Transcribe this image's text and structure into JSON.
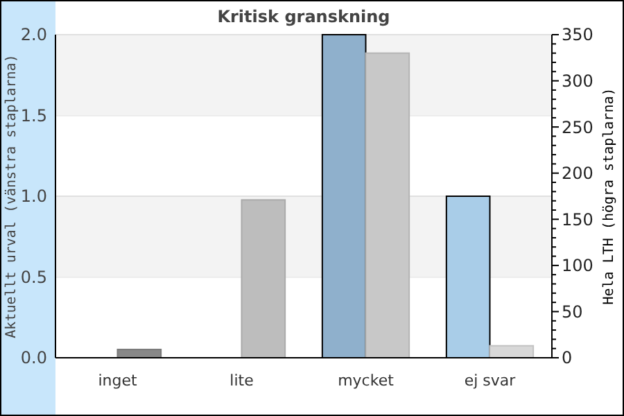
{
  "chart_data": {
    "type": "bar",
    "title": "Kritisk granskning",
    "categories": [
      "inget",
      "lite",
      "mycket",
      "ej svar"
    ],
    "ylabel": "Aktuellt urval (vänstra staplarna)",
    "y2label": "Hela LTH (högra staplarna)",
    "ylim": [
      0,
      2
    ],
    "yticks": [
      {
        "value": 0,
        "label": "0.0"
      },
      {
        "value": 0.5,
        "label": "0.5"
      },
      {
        "value": 1,
        "label": "1.0"
      },
      {
        "value": 1.5,
        "label": "1.5"
      },
      {
        "value": 2,
        "label": "2.0"
      }
    ],
    "y2lim": [
      0,
      350
    ],
    "y2ticks": [
      0,
      {
        "value": 10,
        "label": null
      },
      {
        "value": 20,
        "label": null
      },
      {
        "value": 30,
        "label": null
      },
      {
        "value": 40,
        "label": null
      },
      50,
      {
        "value": 60,
        "label": null
      },
      {
        "value": 70,
        "label": null
      },
      {
        "value": 80,
        "label": null
      },
      {
        "value": 90,
        "label": null
      },
      100,
      {
        "value": 110,
        "label": null
      },
      {
        "value": 120,
        "label": null
      },
      {
        "value": 130,
        "label": null
      },
      {
        "value": 140,
        "label": null
      },
      150,
      {
        "value": 160,
        "label": null
      },
      {
        "value": 170,
        "label": null
      },
      {
        "value": 180,
        "label": null
      },
      {
        "value": 190,
        "label": null
      },
      200,
      {
        "value": 210,
        "label": null
      },
      {
        "value": 220,
        "label": null
      },
      {
        "value": 230,
        "label": null
      },
      {
        "value": 240,
        "label": null
      },
      250,
      {
        "value": 260,
        "label": null
      },
      {
        "value": 270,
        "label": null
      },
      {
        "value": 280,
        "label": null
      },
      {
        "value": 290,
        "label": null
      },
      300,
      {
        "value": 310,
        "label": null
      },
      {
        "value": 320,
        "label": null
      },
      {
        "value": 330,
        "label": null
      },
      {
        "value": 340,
        "label": null
      },
      350
    ],
    "grid": "y",
    "series": [
      {
        "values": [
          0,
          0,
          2,
          1
        ],
        "colors": [
          "#8fb0cc",
          "#8fb0cc",
          "#8fb0cc",
          "#a9cde8"
        ]
      },
      {
        "values": [
          9,
          171,
          330,
          13
        ],
        "axis": "y2",
        "colors": [
          "#888888",
          "#bdbdbd",
          "#c8c8c8",
          "#d8d8d8"
        ]
      }
    ]
  }
}
